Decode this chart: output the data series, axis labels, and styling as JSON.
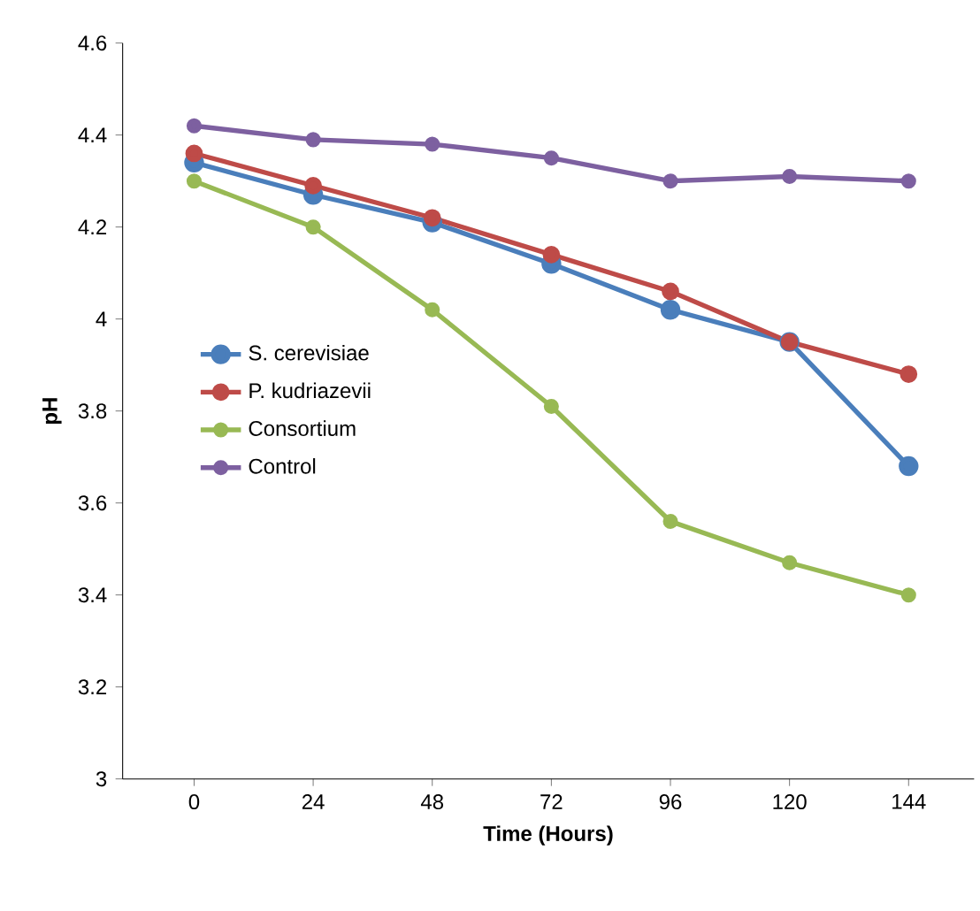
{
  "chart_data": {
    "type": "line",
    "xlabel": "Time (Hours)",
    "ylabel": "pH",
    "categories": [
      "0",
      "24",
      "48",
      "72",
      "96",
      "120",
      "144"
    ],
    "ylim": [
      3,
      4.6
    ],
    "yticks": [
      3,
      3.2,
      3.4,
      3.6,
      3.8,
      4,
      4.2,
      4.4,
      4.6
    ],
    "marker": "circle",
    "grid": false,
    "legend": "left",
    "series": [
      {
        "name": "S. cerevisiae",
        "color": "#4a7ebb",
        "values": [
          4.34,
          4.27,
          4.21,
          4.12,
          4.02,
          3.95,
          3.68
        ]
      },
      {
        "name": "P. kudriazevii",
        "color": "#be4b48",
        "values": [
          4.36,
          4.29,
          4.22,
          4.14,
          4.06,
          3.95,
          3.88
        ]
      },
      {
        "name": "Consortium",
        "color": "#98b954",
        "values": [
          4.3,
          4.2,
          4.02,
          3.81,
          3.56,
          3.47,
          3.4
        ]
      },
      {
        "name": "Control",
        "color": "#7d60a0",
        "values": [
          4.42,
          4.39,
          4.38,
          4.35,
          4.3,
          4.31,
          4.3
        ]
      }
    ]
  }
}
